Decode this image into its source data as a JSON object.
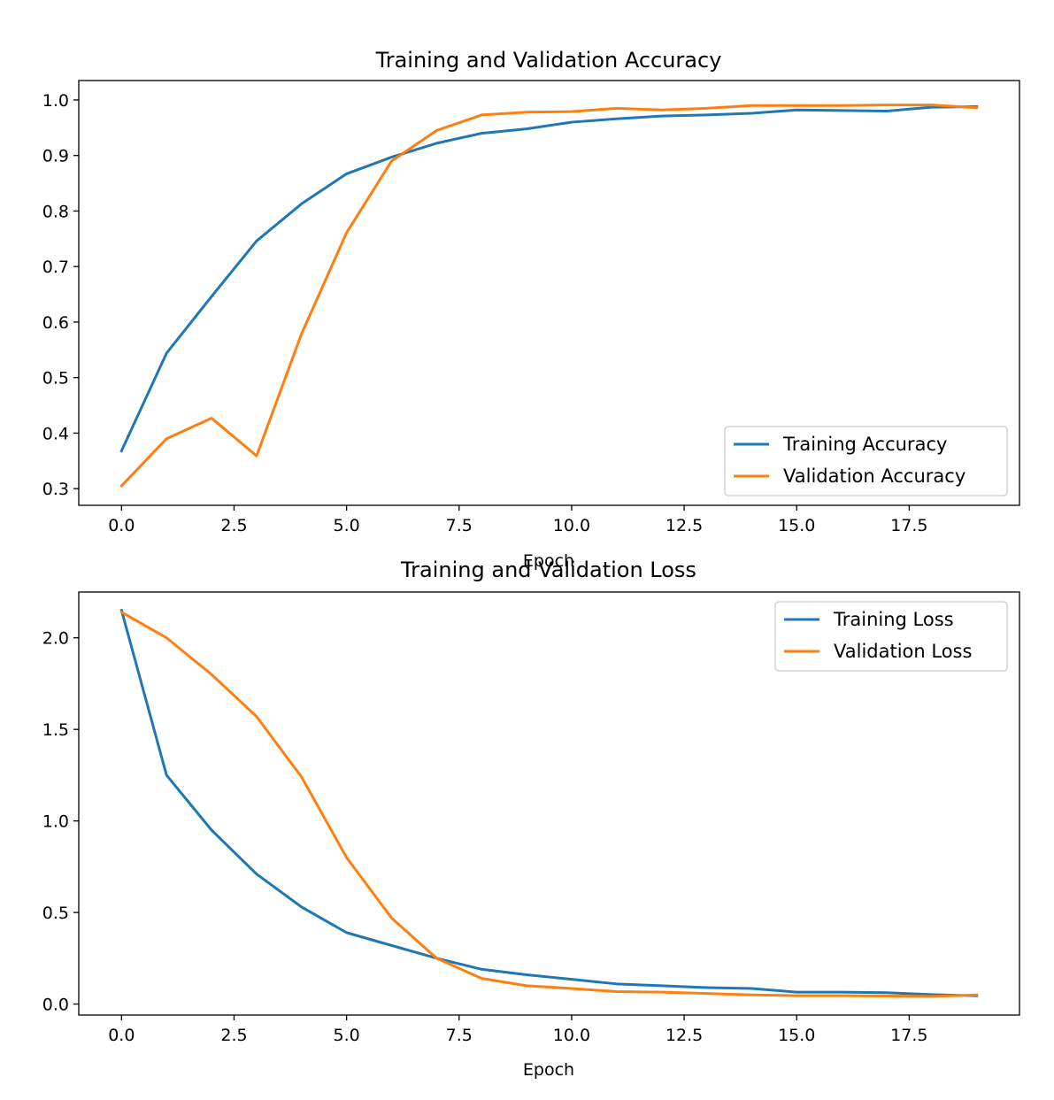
{
  "chart_data": [
    {
      "type": "line",
      "title": "Training and Validation Accuracy",
      "xlabel": "Epoch",
      "ylabel": "",
      "xlim": [
        -0.95,
        19.95
      ],
      "ylim": [
        0.27,
        1.035
      ],
      "xticks": [
        0,
        2.5,
        5,
        7.5,
        10,
        12.5,
        15,
        17.5
      ],
      "xtick_labels": [
        "0.0",
        "2.5",
        "5.0",
        "7.5",
        "10.0",
        "12.5",
        "15.0",
        "17.5"
      ],
      "yticks": [
        0.3,
        0.4,
        0.5,
        0.6,
        0.7,
        0.8,
        0.9,
        1.0
      ],
      "ytick_labels": [
        "0.3",
        "0.4",
        "0.5",
        "0.6",
        "0.7",
        "0.8",
        "0.9",
        "1.0"
      ],
      "grid": false,
      "legend_position": "lower right",
      "x": [
        0,
        1,
        2,
        3,
        4,
        5,
        6,
        7,
        8,
        9,
        10,
        11,
        12,
        13,
        14,
        15,
        16,
        17,
        18,
        19
      ],
      "series": [
        {
          "name": "Training Accuracy",
          "color": "#1f77b4",
          "values": [
            0.368,
            0.544,
            0.646,
            0.746,
            0.813,
            0.867,
            0.897,
            0.922,
            0.94,
            0.948,
            0.96,
            0.966,
            0.971,
            0.973,
            0.976,
            0.982,
            0.981,
            0.98,
            0.987,
            0.988
          ]
        },
        {
          "name": "Validation Accuracy",
          "color": "#ff7f0e",
          "values": [
            0.305,
            0.39,
            0.427,
            0.359,
            0.579,
            0.761,
            0.89,
            0.945,
            0.973,
            0.978,
            0.979,
            0.985,
            0.982,
            0.985,
            0.99,
            0.99,
            0.99,
            0.991,
            0.991,
            0.986
          ]
        }
      ]
    },
    {
      "type": "line",
      "title": "Training and Validation Loss",
      "xlabel": "Epoch",
      "ylabel": "",
      "xlim": [
        -0.95,
        19.95
      ],
      "ylim": [
        -0.06,
        2.25
      ],
      "xticks": [
        0,
        2.5,
        5,
        7.5,
        10,
        12.5,
        15,
        17.5
      ],
      "xtick_labels": [
        "0.0",
        "2.5",
        "5.0",
        "7.5",
        "10.0",
        "12.5",
        "15.0",
        "17.5"
      ],
      "yticks": [
        0.0,
        0.5,
        1.0,
        1.5,
        2.0
      ],
      "ytick_labels": [
        "0.0",
        "0.5",
        "1.0",
        "1.5",
        "2.0"
      ],
      "grid": false,
      "legend_position": "upper right",
      "x": [
        0,
        1,
        2,
        3,
        4,
        5,
        6,
        7,
        8,
        9,
        10,
        11,
        12,
        13,
        14,
        15,
        16,
        17,
        18,
        19
      ],
      "series": [
        {
          "name": "Training Loss",
          "color": "#1f77b4",
          "values": [
            2.15,
            1.25,
            0.95,
            0.71,
            0.53,
            0.39,
            0.32,
            0.25,
            0.19,
            0.16,
            0.135,
            0.11,
            0.1,
            0.09,
            0.085,
            0.065,
            0.065,
            0.062,
            0.052,
            0.045
          ]
        },
        {
          "name": "Validation Loss",
          "color": "#ff7f0e",
          "values": [
            2.14,
            2.0,
            1.8,
            1.57,
            1.24,
            0.8,
            0.47,
            0.25,
            0.14,
            0.1,
            0.085,
            0.068,
            0.065,
            0.058,
            0.05,
            0.046,
            0.046,
            0.044,
            0.042,
            0.05
          ]
        }
      ]
    }
  ]
}
